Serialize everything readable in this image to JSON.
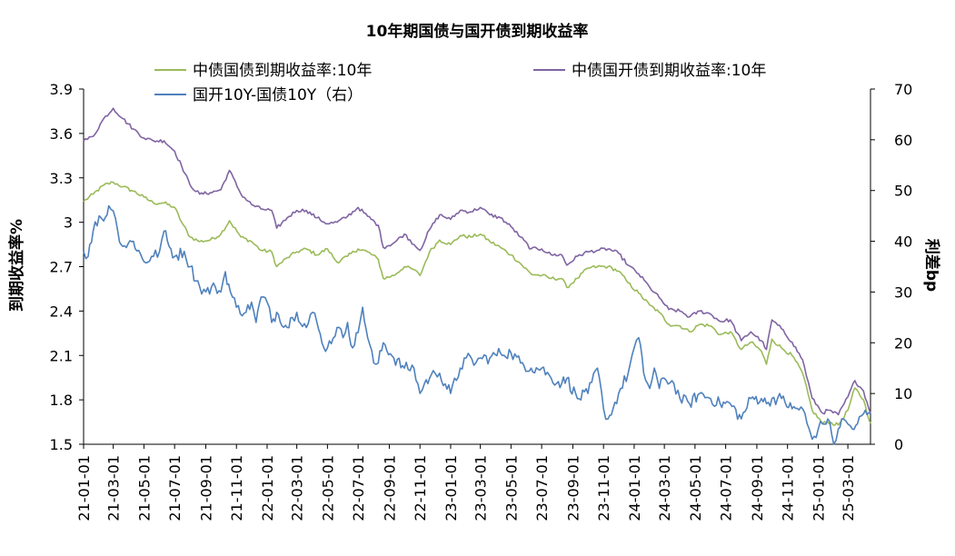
{
  "chart_data": {
    "type": "line",
    "title": "10年期国债与国开债到期收益率",
    "ylabel_left": "到期收益率%",
    "ylabel_right": "利差bp",
    "left_axis": {
      "min": 1.5,
      "max": 3.9,
      "ticks": [
        "1.5",
        "1.8",
        "2.1",
        "2.4",
        "2.7",
        "3",
        "3.3",
        "3.6",
        "3.9"
      ]
    },
    "right_axis": {
      "min": 0,
      "max": 70,
      "ticks": [
        "0",
        "10",
        "20",
        "30",
        "40",
        "50",
        "60",
        "70"
      ]
    },
    "x_tick_labels": [
      "21-01-01",
      "21-03-01",
      "21-05-01",
      "21-07-01",
      "21-09-01",
      "21-11-01",
      "22-01-01",
      "22-03-01",
      "22-05-01",
      "22-07-01",
      "22-09-01",
      "22-11-01",
      "23-01-01",
      "23-03-01",
      "23-05-01",
      "23-07-01",
      "23-09-01",
      "23-11-01",
      "24-01-01",
      "24-03-01",
      "24-05-01",
      "24-07-01",
      "24-09-01",
      "24-11-01",
      "25-01-01",
      "25-03-01"
    ],
    "x_end": "25-04-15",
    "legend_placement": "top",
    "series": [
      {
        "name": "中债国债到期收益率:10年",
        "axis": "left",
        "color": "#9bbb59",
        "points": [
          [
            "21-01-01",
            3.14
          ],
          [
            "21-01-20",
            3.19
          ],
          [
            "21-02-10",
            3.25
          ],
          [
            "21-03-01",
            3.27
          ],
          [
            "21-03-20",
            3.24
          ],
          [
            "21-04-10",
            3.21
          ],
          [
            "21-05-01",
            3.17
          ],
          [
            "21-05-20",
            3.13
          ],
          [
            "21-06-10",
            3.13
          ],
          [
            "21-07-01",
            3.1
          ],
          [
            "21-07-15",
            3.0
          ],
          [
            "21-08-01",
            2.9
          ],
          [
            "21-08-20",
            2.87
          ],
          [
            "21-09-10",
            2.88
          ],
          [
            "21-10-01",
            2.92
          ],
          [
            "21-10-18",
            3.01
          ],
          [
            "21-11-10",
            2.9
          ],
          [
            "21-12-01",
            2.87
          ],
          [
            "21-12-20",
            2.81
          ],
          [
            "22-01-10",
            2.8
          ],
          [
            "22-01-20",
            2.7
          ],
          [
            "22-02-10",
            2.76
          ],
          [
            "22-03-01",
            2.8
          ],
          [
            "22-03-20",
            2.82
          ],
          [
            "22-04-10",
            2.78
          ],
          [
            "22-05-01",
            2.82
          ],
          [
            "22-05-20",
            2.73
          ],
          [
            "22-06-10",
            2.77
          ],
          [
            "22-07-01",
            2.82
          ],
          [
            "22-07-20",
            2.8
          ],
          [
            "22-08-10",
            2.75
          ],
          [
            "22-08-20",
            2.62
          ],
          [
            "22-09-10",
            2.64
          ],
          [
            "22-10-01",
            2.7
          ],
          [
            "22-10-20",
            2.68
          ],
          [
            "22-11-01",
            2.64
          ],
          [
            "22-11-20",
            2.8
          ],
          [
            "22-12-10",
            2.88
          ],
          [
            "23-01-01",
            2.85
          ],
          [
            "23-01-20",
            2.91
          ],
          [
            "23-02-10",
            2.9
          ],
          [
            "23-03-01",
            2.92
          ],
          [
            "23-03-20",
            2.87
          ],
          [
            "23-04-10",
            2.83
          ],
          [
            "23-05-01",
            2.78
          ],
          [
            "23-05-20",
            2.72
          ],
          [
            "23-06-10",
            2.65
          ],
          [
            "23-07-01",
            2.64
          ],
          [
            "23-07-20",
            2.62
          ],
          [
            "23-08-10",
            2.62
          ],
          [
            "23-08-20",
            2.56
          ],
          [
            "23-09-10",
            2.62
          ],
          [
            "23-10-01",
            2.69
          ],
          [
            "23-10-20",
            2.7
          ],
          [
            "23-11-10",
            2.7
          ],
          [
            "23-12-01",
            2.67
          ],
          [
            "23-12-20",
            2.59
          ],
          [
            "24-01-10",
            2.52
          ],
          [
            "24-02-01",
            2.44
          ],
          [
            "24-02-20",
            2.39
          ],
          [
            "24-03-10",
            2.31
          ],
          [
            "24-04-01",
            2.3
          ],
          [
            "24-04-20",
            2.26
          ],
          [
            "24-05-10",
            2.31
          ],
          [
            "24-06-01",
            2.3
          ],
          [
            "24-06-20",
            2.24
          ],
          [
            "24-07-10",
            2.26
          ],
          [
            "24-08-01",
            2.14
          ],
          [
            "24-08-20",
            2.19
          ],
          [
            "24-09-10",
            2.13
          ],
          [
            "24-09-20",
            2.04
          ],
          [
            "24-10-01",
            2.21
          ],
          [
            "24-10-20",
            2.15
          ],
          [
            "24-11-10",
            2.1
          ],
          [
            "24-12-01",
            1.98
          ],
          [
            "24-12-20",
            1.73
          ],
          [
            "25-01-10",
            1.64
          ],
          [
            "25-01-20",
            1.65
          ],
          [
            "25-02-10",
            1.63
          ],
          [
            "25-03-01",
            1.73
          ],
          [
            "25-03-15",
            1.88
          ],
          [
            "25-04-01",
            1.8
          ],
          [
            "25-04-15",
            1.64
          ]
        ]
      },
      {
        "name": "中债国开债到期收益率:10年",
        "axis": "left",
        "color": "#8064a2",
        "points": [
          [
            "21-01-01",
            3.55
          ],
          [
            "21-01-20",
            3.58
          ],
          [
            "21-02-10",
            3.7
          ],
          [
            "21-03-01",
            3.77
          ],
          [
            "21-03-20",
            3.7
          ],
          [
            "21-04-10",
            3.63
          ],
          [
            "21-05-01",
            3.57
          ],
          [
            "21-05-20",
            3.55
          ],
          [
            "21-06-10",
            3.55
          ],
          [
            "21-07-01",
            3.48
          ],
          [
            "21-07-15",
            3.38
          ],
          [
            "21-08-01",
            3.25
          ],
          [
            "21-08-20",
            3.19
          ],
          [
            "21-09-10",
            3.2
          ],
          [
            "21-10-01",
            3.22
          ],
          [
            "21-10-18",
            3.35
          ],
          [
            "21-11-10",
            3.19
          ],
          [
            "21-12-01",
            3.12
          ],
          [
            "21-12-20",
            3.09
          ],
          [
            "22-01-10",
            3.08
          ],
          [
            "22-01-20",
            2.96
          ],
          [
            "22-02-10",
            3.03
          ],
          [
            "22-03-01",
            3.08
          ],
          [
            "22-03-20",
            3.08
          ],
          [
            "22-04-10",
            3.03
          ],
          [
            "22-05-01",
            2.99
          ],
          [
            "22-05-20",
            3.0
          ],
          [
            "22-06-10",
            3.04
          ],
          [
            "22-07-01",
            3.1
          ],
          [
            "22-07-20",
            3.04
          ],
          [
            "22-08-10",
            2.98
          ],
          [
            "22-08-20",
            2.83
          ],
          [
            "22-09-10",
            2.86
          ],
          [
            "22-10-01",
            2.92
          ],
          [
            "22-10-20",
            2.85
          ],
          [
            "22-11-01",
            2.81
          ],
          [
            "22-11-20",
            2.95
          ],
          [
            "22-12-10",
            3.05
          ],
          [
            "23-01-01",
            3.02
          ],
          [
            "23-01-20",
            3.08
          ],
          [
            "23-02-10",
            3.07
          ],
          [
            "23-03-01",
            3.1
          ],
          [
            "23-03-20",
            3.05
          ],
          [
            "23-04-10",
            3.03
          ],
          [
            "23-05-01",
            2.97
          ],
          [
            "23-05-20",
            2.9
          ],
          [
            "23-06-10",
            2.82
          ],
          [
            "23-07-01",
            2.82
          ],
          [
            "23-07-20",
            2.78
          ],
          [
            "23-08-10",
            2.78
          ],
          [
            "23-08-20",
            2.71
          ],
          [
            "23-09-10",
            2.77
          ],
          [
            "23-10-01",
            2.8
          ],
          [
            "23-10-20",
            2.81
          ],
          [
            "23-11-10",
            2.82
          ],
          [
            "23-12-01",
            2.79
          ],
          [
            "23-12-20",
            2.71
          ],
          [
            "24-01-10",
            2.65
          ],
          [
            "24-02-01",
            2.56
          ],
          [
            "24-02-20",
            2.49
          ],
          [
            "24-03-10",
            2.41
          ],
          [
            "24-04-01",
            2.4
          ],
          [
            "24-04-20",
            2.36
          ],
          [
            "24-05-10",
            2.4
          ],
          [
            "24-06-01",
            2.38
          ],
          [
            "24-06-20",
            2.33
          ],
          [
            "24-07-10",
            2.34
          ],
          [
            "24-08-01",
            2.2
          ],
          [
            "24-08-20",
            2.26
          ],
          [
            "24-09-10",
            2.2
          ],
          [
            "24-09-20",
            2.14
          ],
          [
            "24-10-01",
            2.34
          ],
          [
            "24-10-20",
            2.28
          ],
          [
            "24-11-10",
            2.19
          ],
          [
            "24-12-01",
            2.07
          ],
          [
            "24-12-20",
            1.81
          ],
          [
            "25-01-10",
            1.71
          ],
          [
            "25-01-20",
            1.73
          ],
          [
            "25-02-10",
            1.7
          ],
          [
            "25-03-01",
            1.82
          ],
          [
            "25-03-15",
            1.93
          ],
          [
            "25-04-01",
            1.86
          ],
          [
            "25-04-15",
            1.71
          ]
        ]
      },
      {
        "name": "国开10Y-国债10Y（右）",
        "axis": "right",
        "color": "#4f81bd",
        "points": [
          [
            "21-01-01",
            38
          ],
          [
            "21-01-10",
            37
          ],
          [
            "21-01-20",
            42
          ],
          [
            "21-02-01",
            45
          ],
          [
            "21-02-10",
            44
          ],
          [
            "21-02-20",
            47
          ],
          [
            "21-03-01",
            46
          ],
          [
            "21-03-10",
            42
          ],
          [
            "21-03-20",
            39
          ],
          [
            "21-04-10",
            40
          ],
          [
            "21-05-01",
            36
          ],
          [
            "21-05-20",
            37
          ],
          [
            "21-06-01",
            38
          ],
          [
            "21-06-10",
            42
          ],
          [
            "21-06-20",
            39
          ],
          [
            "21-07-01",
            37
          ],
          [
            "21-07-20",
            38
          ],
          [
            "21-08-01",
            35
          ],
          [
            "21-08-20",
            31
          ],
          [
            "21-09-01",
            30
          ],
          [
            "21-09-20",
            31
          ],
          [
            "21-10-01",
            30
          ],
          [
            "21-10-10",
            34
          ],
          [
            "21-10-20",
            30
          ],
          [
            "21-11-01",
            27
          ],
          [
            "21-11-20",
            26
          ],
          [
            "21-12-01",
            28
          ],
          [
            "21-12-10",
            24
          ],
          [
            "21-12-20",
            29
          ],
          [
            "22-01-01",
            28
          ],
          [
            "22-01-10",
            24
          ],
          [
            "22-01-20",
            26
          ],
          [
            "22-02-10",
            23
          ],
          [
            "22-02-20",
            25
          ],
          [
            "22-03-01",
            26
          ],
          [
            "22-03-20",
            23
          ],
          [
            "22-04-01",
            26
          ],
          [
            "22-04-10",
            24
          ],
          [
            "22-04-20",
            20
          ],
          [
            "22-05-01",
            19
          ],
          [
            "22-05-20",
            23
          ],
          [
            "22-06-01",
            21
          ],
          [
            "22-06-10",
            24
          ],
          [
            "22-06-20",
            19
          ],
          [
            "22-07-01",
            22
          ],
          [
            "22-07-10",
            27
          ],
          [
            "22-07-20",
            21
          ],
          [
            "22-08-01",
            16
          ],
          [
            "22-08-10",
            16
          ],
          [
            "22-08-20",
            20
          ],
          [
            "22-09-10",
            17
          ],
          [
            "22-10-01",
            15
          ],
          [
            "22-10-20",
            15
          ],
          [
            "22-11-01",
            10
          ],
          [
            "22-11-10",
            12
          ],
          [
            "22-11-20",
            13
          ],
          [
            "22-12-01",
            14
          ],
          [
            "22-12-10",
            14
          ],
          [
            "23-01-01",
            10
          ],
          [
            "23-01-20",
            15
          ],
          [
            "23-02-01",
            17
          ],
          [
            "23-02-20",
            16
          ],
          [
            "23-03-01",
            17
          ],
          [
            "23-03-20",
            17
          ],
          [
            "23-04-10",
            18
          ],
          [
            "23-05-01",
            18
          ],
          [
            "23-05-20",
            16
          ],
          [
            "23-06-10",
            15
          ],
          [
            "23-07-01",
            15
          ],
          [
            "23-07-20",
            13
          ],
          [
            "23-08-10",
            12
          ],
          [
            "23-08-20",
            13
          ],
          [
            "23-09-10",
            9
          ],
          [
            "23-10-01",
            10
          ],
          [
            "23-10-20",
            15
          ],
          [
            "23-11-01",
            7
          ],
          [
            "23-11-10",
            5
          ],
          [
            "23-11-20",
            7
          ],
          [
            "23-12-01",
            10
          ],
          [
            "23-12-20",
            14
          ],
          [
            "24-01-01",
            19
          ],
          [
            "24-01-10",
            21
          ],
          [
            "24-01-20",
            14
          ],
          [
            "24-02-01",
            11
          ],
          [
            "24-02-10",
            15
          ],
          [
            "24-02-20",
            11
          ],
          [
            "24-03-01",
            13
          ],
          [
            "24-03-20",
            12
          ],
          [
            "24-04-01",
            9
          ],
          [
            "24-04-20",
            8
          ],
          [
            "24-05-10",
            10
          ],
          [
            "24-06-01",
            9
          ],
          [
            "24-06-20",
            8
          ],
          [
            "24-07-10",
            8
          ],
          [
            "24-08-01",
            5
          ],
          [
            "24-08-20",
            9
          ],
          [
            "24-09-10",
            9
          ],
          [
            "24-09-20",
            8
          ],
          [
            "24-10-01",
            9
          ],
          [
            "24-10-20",
            9
          ],
          [
            "24-11-10",
            7
          ],
          [
            "24-12-01",
            7
          ],
          [
            "24-12-10",
            4
          ],
          [
            "24-12-20",
            1
          ],
          [
            "25-01-01",
            3
          ],
          [
            "25-01-10",
            4
          ],
          [
            "25-01-20",
            5
          ],
          [
            "25-02-01",
            0
          ],
          [
            "25-02-10",
            3
          ],
          [
            "25-02-20",
            5
          ],
          [
            "25-03-01",
            4
          ],
          [
            "25-03-10",
            3
          ],
          [
            "25-03-20",
            4
          ],
          [
            "25-04-01",
            6
          ],
          [
            "25-04-15",
            6
          ]
        ]
      }
    ]
  }
}
